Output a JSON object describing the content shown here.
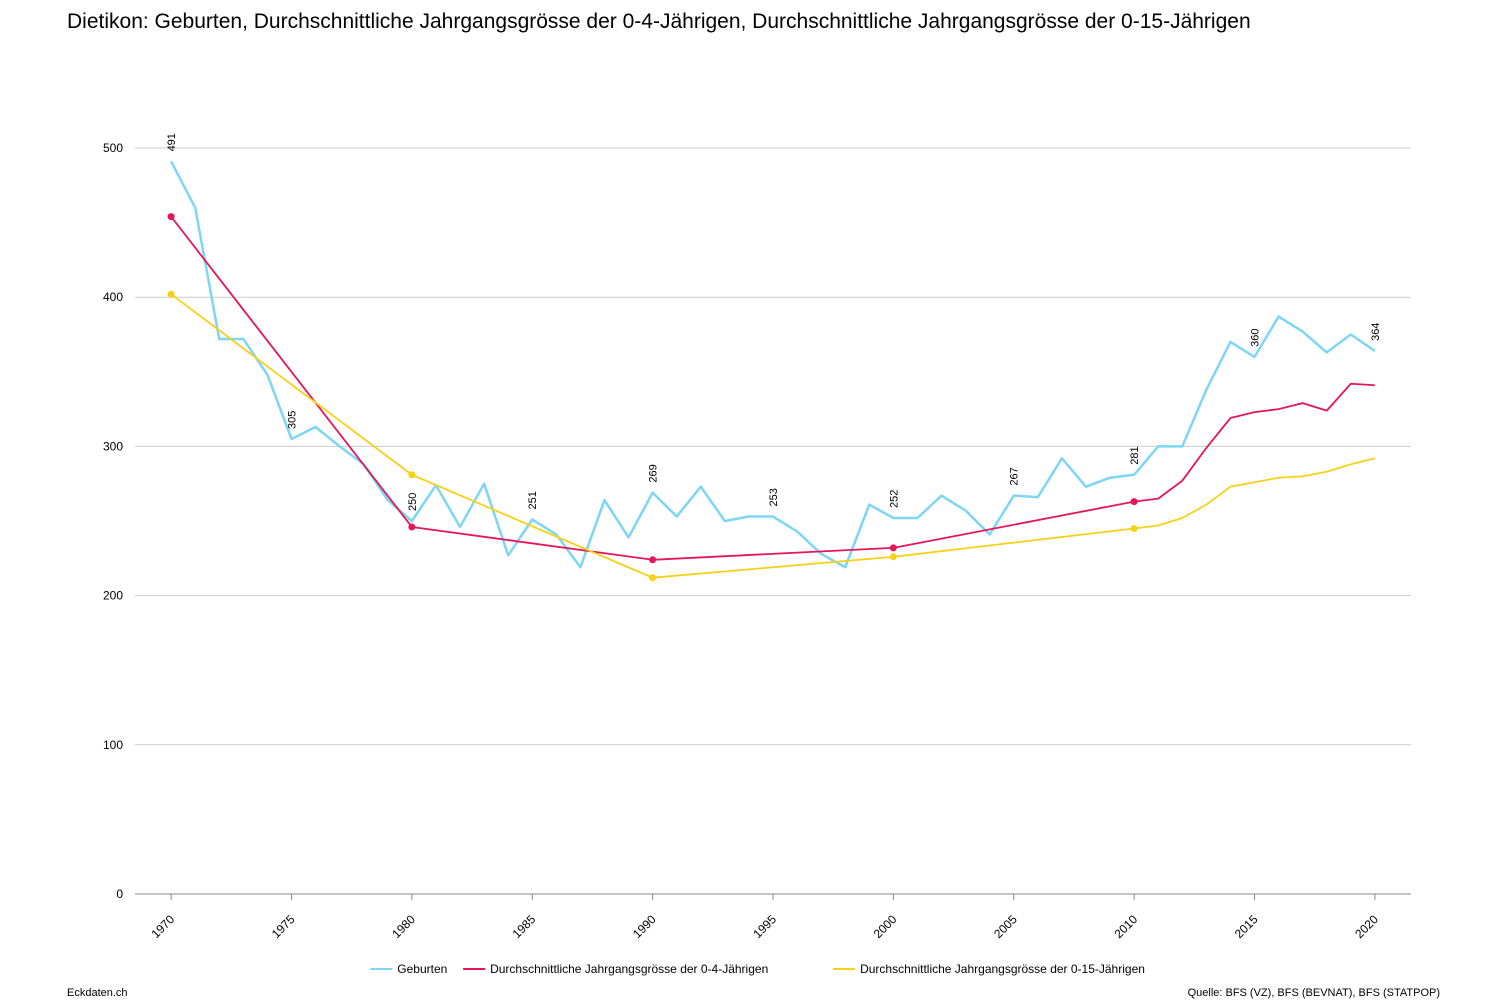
{
  "chart_data": {
    "type": "line",
    "title": "Dietikon: Geburten, Durchschnittliche Jahrgangsgrösse der 0-4-Jährigen, Durchschnittliche Jahrgangsgrösse der 0-15-Jährigen",
    "source": "Quelle: BFS (VZ), BFS (BEVNAT), BFS (STATPOP)",
    "brand": "Eckdaten.ch",
    "xlim": [
      1968.5,
      2021.5
    ],
    "xticks": [
      1970,
      1975,
      1980,
      1985,
      1990,
      1995,
      2000,
      2005,
      2010,
      2015,
      2020
    ],
    "ylim": [
      0,
      500
    ],
    "yticks": [
      0,
      100,
      200,
      300,
      400,
      500
    ],
    "grid": true,
    "legend": "bottom",
    "series": [
      {
        "name": "Geburten",
        "color": "#7dd6f5",
        "x": [
          1970,
          1971,
          1972,
          1973,
          1974,
          1975,
          1976,
          1977,
          1978,
          1979,
          1980,
          1981,
          1982,
          1983,
          1984,
          1985,
          1986,
          1987,
          1988,
          1989,
          1990,
          1991,
          1992,
          1993,
          1994,
          1995,
          1996,
          1997,
          1998,
          1999,
          2000,
          2001,
          2002,
          2003,
          2004,
          2005,
          2006,
          2007,
          2008,
          2009,
          2010,
          2011,
          2012,
          2013,
          2014,
          2015,
          2016,
          2017,
          2018,
          2019,
          2020
        ],
        "values": [
          491,
          460,
          372,
          372,
          348,
          305,
          313,
          300,
          288,
          264,
          250,
          274,
          246,
          275,
          227,
          251,
          241,
          219,
          264,
          239,
          269,
          253,
          273,
          250,
          253,
          253,
          243,
          228,
          219,
          261,
          252,
          252,
          267,
          257,
          241,
          267,
          266,
          292,
          273,
          279,
          281,
          300,
          300,
          338,
          370,
          360,
          387,
          377,
          363,
          375,
          364
        ]
      },
      {
        "name": "Durchschnittliche Jahrgangsgrösse der 0-4-Jährigen",
        "color": "#e5155a",
        "x": [
          1970,
          1980,
          1990,
          2000,
          2010,
          2011,
          2012,
          2013,
          2014,
          2015,
          2016,
          2017,
          2018,
          2019,
          2020
        ],
        "values": [
          454,
          246,
          224,
          232,
          263,
          265,
          277,
          299,
          319,
          323,
          325,
          329,
          324,
          342,
          341
        ]
      },
      {
        "name": "Durchschnittliche Jahrgangsgrösse der 0-15-Jährigen",
        "color": "#f7d117",
        "x": [
          1970,
          1980,
          1990,
          2000,
          2010,
          2011,
          2012,
          2013,
          2014,
          2015,
          2016,
          2017,
          2018,
          2019,
          2020
        ],
        "values": [
          402,
          281,
          212,
          226,
          245,
          247,
          252,
          261,
          273,
          276,
          279,
          280,
          283,
          288,
          292
        ]
      }
    ]
  }
}
